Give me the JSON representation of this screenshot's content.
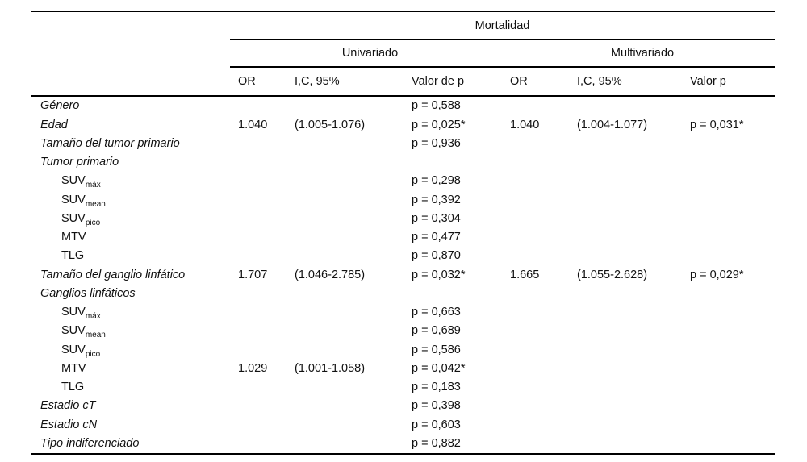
{
  "table": {
    "header": {
      "span_title": "Mortalidad",
      "group_univariate": "Univariado",
      "group_multivariate": "Multivariado",
      "columns": [
        "OR",
        "I,C, 95%",
        "Valor de p",
        "OR",
        "I,C, 95%",
        "Valor p"
      ]
    },
    "rows": [
      {
        "label": "Género",
        "style": "main",
        "cells": [
          "",
          "",
          "p = 0,588",
          "",
          "",
          ""
        ]
      },
      {
        "label": "Edad",
        "style": "main",
        "cells": [
          "1.040",
          "(1.005-1.076)",
          "p = 0,025*",
          "1.040",
          "(1.004-1.077)",
          "p = 0,031*"
        ]
      },
      {
        "label": "Tamaño del tumor primario",
        "style": "main",
        "cells": [
          "",
          "",
          "p = 0,936",
          "",
          "",
          ""
        ]
      },
      {
        "label": "Tumor primario",
        "style": "main",
        "cells": [
          "",
          "",
          "",
          "",
          "",
          ""
        ]
      },
      {
        "label": "SUV",
        "sub": "máx",
        "style": "indent",
        "cells": [
          "",
          "",
          "p = 0,298",
          "",
          "",
          ""
        ]
      },
      {
        "label": "SUV",
        "sub": "mean",
        "style": "indent",
        "cells": [
          "",
          "",
          "p = 0,392",
          "",
          "",
          ""
        ]
      },
      {
        "label": "SUV",
        "sub": "pico",
        "style": "indent",
        "cells": [
          "",
          "",
          "p = 0,304",
          "",
          "",
          ""
        ]
      },
      {
        "label": "MTV",
        "style": "indent",
        "cells": [
          "",
          "",
          "p = 0,477",
          "",
          "",
          ""
        ]
      },
      {
        "label": "TLG",
        "style": "indent",
        "cells": [
          "",
          "",
          "p = 0,870",
          "",
          "",
          ""
        ]
      },
      {
        "label": "Tamaño del ganglio linfático",
        "style": "main",
        "cells": [
          "1.707",
          "(1.046-2.785)",
          "p = 0,032*",
          "1.665",
          "(1.055-2.628)",
          "p = 0,029*"
        ]
      },
      {
        "label": "Ganglios linfáticos",
        "style": "main",
        "cells": [
          "",
          "",
          "",
          "",
          "",
          ""
        ]
      },
      {
        "label": "SUV",
        "sub": "máx",
        "style": "indent",
        "cells": [
          "",
          "",
          "p = 0,663",
          "",
          "",
          ""
        ]
      },
      {
        "label": "SUV",
        "sub": "mean",
        "style": "indent",
        "cells": [
          "",
          "",
          "p = 0,689",
          "",
          "",
          ""
        ]
      },
      {
        "label": "SUV",
        "sub": "pico",
        "style": "indent",
        "cells": [
          "",
          "",
          "p = 0,586",
          "",
          "",
          ""
        ]
      },
      {
        "label": "MTV",
        "style": "indent",
        "cells": [
          "1.029",
          "(1.001-1.058)",
          "p = 0,042*",
          "",
          "",
          ""
        ]
      },
      {
        "label": "TLG",
        "style": "indent",
        "cells": [
          "",
          "",
          "p = 0,183",
          "",
          "",
          ""
        ]
      },
      {
        "label": "Estadio cT",
        "style": "main",
        "cells": [
          "",
          "",
          "p = 0,398",
          "",
          "",
          ""
        ]
      },
      {
        "label": "Estadio cN",
        "style": "main",
        "cells": [
          "",
          "",
          "p = 0,603",
          "",
          "",
          ""
        ]
      },
      {
        "label": "Tipo indiferenciado",
        "style": "main",
        "cells": [
          "",
          "",
          "p = 0,882",
          "",
          "",
          ""
        ]
      }
    ]
  },
  "colors": {
    "text": "#111111",
    "rule": "#000000",
    "background": "#ffffff"
  }
}
